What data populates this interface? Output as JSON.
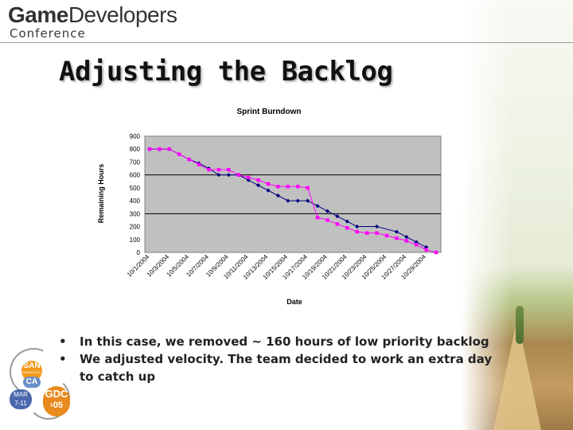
{
  "header": {
    "logo_line1_bold": "Game",
    "logo_line1_rest": "Developers",
    "logo_line2": "Conference"
  },
  "slide": {
    "title": "Adjusting the Backlog",
    "bullets": [
      "In this case, we removed ~ 160 hours of low priority backlog",
      "We adjusted velocity.  The team decided to work an extra day to catch up"
    ],
    "bullet_glyph": "•"
  },
  "badge": {
    "city": "SAN",
    "city_sub": "FRANCISCO",
    "state": "CA",
    "dates_line1": "MAR",
    "dates_line2": "7-11",
    "brand": "GDC",
    "year": "›05"
  },
  "colors": {
    "plot_bg": "#c0c0c0",
    "series_dark": "#000080",
    "series_pink": "#ff00ff",
    "grid": "#000000"
  },
  "chart_data": {
    "type": "line",
    "title": "Sprint Burndown",
    "xlabel": "Date",
    "ylabel": "Remaining Hours",
    "ylim": [
      0,
      900
    ],
    "yticks": [
      0,
      100,
      200,
      300,
      400,
      500,
      600,
      700,
      800,
      900
    ],
    "grid": "horizontal at 300 and 600",
    "xtick_labels": [
      "10/1/2004",
      "10/3/2004",
      "10/5/2004",
      "10/7/2004",
      "10/9/2004",
      "10/11/2004",
      "10/13/2004",
      "10/15/2004",
      "10/17/2004",
      "10/19/2004",
      "10/21/2004",
      "10/23/2004",
      "10/25/2004",
      "10/27/2004",
      "10/29/2004"
    ],
    "x": [
      "10/1/2004",
      "10/2/2004",
      "10/3/2004",
      "10/4/2004",
      "10/5/2004",
      "10/6/2004",
      "10/7/2004",
      "10/8/2004",
      "10/9/2004",
      "10/10/2004",
      "10/11/2004",
      "10/12/2004",
      "10/13/2004",
      "10/14/2004",
      "10/15/2004",
      "10/16/2004",
      "10/17/2004",
      "10/18/2004",
      "10/19/2004",
      "10/20/2004",
      "10/21/2004",
      "10/22/2004",
      "10/23/2004",
      "10/24/2004",
      "10/25/2004",
      "10/26/2004",
      "10/27/2004",
      "10/28/2004",
      "10/29/2004"
    ],
    "series": [
      {
        "values": [
          800,
          800,
          800,
          760,
          720,
          690,
          650,
          600,
          600,
          600,
          560,
          520,
          480,
          440,
          400,
          400,
          400,
          360,
          320,
          280,
          240,
          200,
          null,
          200,
          null,
          160,
          120,
          80,
          40
        ]
      },
      {
        "values": [
          800,
          800,
          800,
          760,
          720,
          680,
          640,
          640,
          640,
          600,
          580,
          560,
          530,
          510,
          510,
          510,
          500,
          270,
          250,
          220,
          190,
          160,
          150,
          150,
          130,
          110,
          90,
          60,
          20
        ]
      }
    ],
    "final_value": 0
  }
}
